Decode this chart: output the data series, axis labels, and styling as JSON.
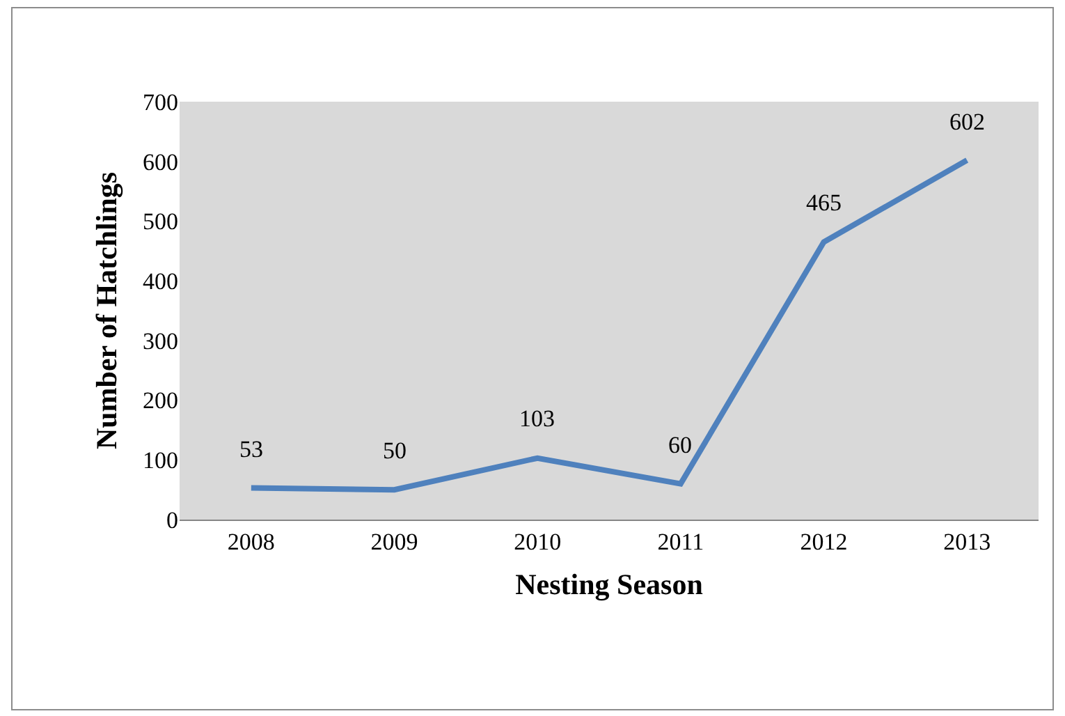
{
  "chart_data": {
    "type": "line",
    "xlabel": "Nesting Season",
    "ylabel": "Number of Hatchlings",
    "categories": [
      "2008",
      "2009",
      "2010",
      "2011",
      "2012",
      "2013"
    ],
    "series": [
      {
        "color": "#4f81bd",
        "values": [
          53,
          50,
          103,
          60,
          465,
          602
        ]
      }
    ],
    "ylim": [
      0,
      700
    ],
    "yticks": [
      0,
      100,
      200,
      300,
      400,
      500,
      600,
      700
    ],
    "data_labels": true,
    "marker": "none",
    "line_style": "solid"
  }
}
